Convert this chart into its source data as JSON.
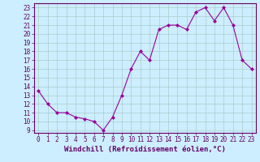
{
  "x": [
    0,
    1,
    2,
    3,
    4,
    5,
    6,
    7,
    8,
    9,
    10,
    11,
    12,
    13,
    14,
    15,
    16,
    17,
    18,
    19,
    20,
    21,
    22,
    23
  ],
  "y": [
    13.5,
    12,
    11,
    11,
    10.5,
    10.3,
    10,
    9,
    10.5,
    13,
    16,
    18,
    17,
    20.5,
    21,
    21,
    20.5,
    22.5,
    23,
    21.5,
    23,
    21,
    17,
    16
  ],
  "line_color": "#990099",
  "marker": "D",
  "marker_size": 2,
  "bg_color": "#cceeff",
  "grid_color": "#aacccc",
  "xlabel": "Windchill (Refroidissement éolien,°C)",
  "xlabel_color": "#660066",
  "xlabel_fontsize": 6.5,
  "yticks": [
    9,
    10,
    11,
    12,
    13,
    14,
    15,
    16,
    17,
    18,
    19,
    20,
    21,
    22,
    23
  ],
  "xlim": [
    -0.5,
    23.5
  ],
  "ylim": [
    8.7,
    23.5
  ],
  "tick_fontsize": 5.5,
  "tick_color": "#660066",
  "axis_color": "#660066",
  "linewidth": 0.8
}
